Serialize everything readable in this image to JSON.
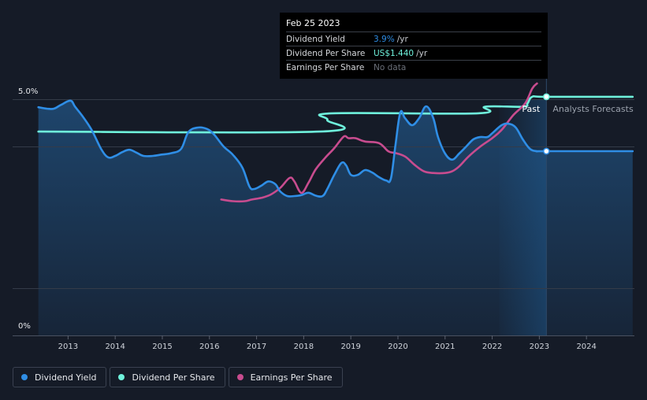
{
  "tooltip": {
    "date": "Feb 25 2023",
    "rows": [
      {
        "name": "Dividend Yield",
        "value": "3.9%",
        "unit": "/yr",
        "color": "#2f8ee6"
      },
      {
        "name": "Dividend Per Share",
        "value": "US$1.440",
        "unit": "/yr",
        "color": "#6ff2dc"
      },
      {
        "name": "Earnings Per Share",
        "value": "No data",
        "unit": "",
        "color": "#6b7079"
      }
    ]
  },
  "legend": [
    {
      "label": "Dividend Yield",
      "color": "#2f8ee6"
    },
    {
      "label": "Dividend Per Share",
      "color": "#6ff2dc"
    },
    {
      "label": "Earnings Per Share",
      "color": "#c84c8f"
    }
  ],
  "chart_data": {
    "type": "line",
    "title": "",
    "xlabel": "",
    "ylabel": "",
    "x_ticks": [
      "2013",
      "2014",
      "2015",
      "2016",
      "2017",
      "2018",
      "2019",
      "2020",
      "2021",
      "2022",
      "2023",
      "2024"
    ],
    "y_ticks": [
      "5.0%",
      "0%"
    ],
    "xlim": [
      2012.35,
      2024.98
    ],
    "ylim": [
      0,
      5.0
    ],
    "past_label": "Past",
    "forecast_label": "Analysts Forecasts",
    "forecast_start": 2023.15,
    "forecast_band_start": 2022.15,
    "series": [
      {
        "name": "Dividend Yield",
        "color": "#2f8ee6",
        "axis": "percent",
        "points": [
          [
            2012.37,
            4.83
          ],
          [
            2012.55,
            4.8
          ],
          [
            2012.7,
            4.8
          ],
          [
            2012.85,
            4.88
          ],
          [
            2013.05,
            4.97
          ],
          [
            2013.15,
            4.84
          ],
          [
            2013.3,
            4.65
          ],
          [
            2013.5,
            4.35
          ],
          [
            2013.7,
            3.95
          ],
          [
            2013.85,
            3.77
          ],
          [
            2014.0,
            3.8
          ],
          [
            2014.15,
            3.88
          ],
          [
            2014.3,
            3.93
          ],
          [
            2014.45,
            3.87
          ],
          [
            2014.6,
            3.8
          ],
          [
            2014.8,
            3.8
          ],
          [
            2015.0,
            3.83
          ],
          [
            2015.2,
            3.86
          ],
          [
            2015.4,
            3.95
          ],
          [
            2015.55,
            4.3
          ],
          [
            2015.75,
            4.4
          ],
          [
            2015.95,
            4.37
          ],
          [
            2016.1,
            4.25
          ],
          [
            2016.3,
            4.0
          ],
          [
            2016.5,
            3.82
          ],
          [
            2016.7,
            3.55
          ],
          [
            2016.85,
            3.15
          ],
          [
            2016.95,
            3.1
          ],
          [
            2017.1,
            3.17
          ],
          [
            2017.25,
            3.26
          ],
          [
            2017.4,
            3.2
          ],
          [
            2017.5,
            3.05
          ],
          [
            2017.65,
            2.95
          ],
          [
            2017.8,
            2.95
          ],
          [
            2017.95,
            2.97
          ],
          [
            2018.1,
            3.02
          ],
          [
            2018.25,
            2.96
          ],
          [
            2018.4,
            2.95
          ],
          [
            2018.5,
            3.1
          ],
          [
            2018.65,
            3.4
          ],
          [
            2018.8,
            3.65
          ],
          [
            2018.9,
            3.6
          ],
          [
            2019.0,
            3.4
          ],
          [
            2019.15,
            3.4
          ],
          [
            2019.3,
            3.5
          ],
          [
            2019.45,
            3.45
          ],
          [
            2019.6,
            3.35
          ],
          [
            2019.75,
            3.28
          ],
          [
            2019.85,
            3.32
          ],
          [
            2019.95,
            4.05
          ],
          [
            2020.05,
            4.72
          ],
          [
            2020.15,
            4.6
          ],
          [
            2020.3,
            4.45
          ],
          [
            2020.45,
            4.6
          ],
          [
            2020.6,
            4.85
          ],
          [
            2020.75,
            4.6
          ],
          [
            2020.85,
            4.2
          ],
          [
            2021.0,
            3.85
          ],
          [
            2021.15,
            3.72
          ],
          [
            2021.3,
            3.85
          ],
          [
            2021.45,
            4.0
          ],
          [
            2021.6,
            4.15
          ],
          [
            2021.75,
            4.2
          ],
          [
            2021.9,
            4.2
          ],
          [
            2022.0,
            4.28
          ],
          [
            2022.2,
            4.45
          ],
          [
            2022.35,
            4.48
          ],
          [
            2022.5,
            4.4
          ],
          [
            2022.65,
            4.15
          ],
          [
            2022.8,
            3.95
          ],
          [
            2022.95,
            3.9
          ],
          [
            2023.15,
            3.9
          ],
          [
            2024.98,
            3.9
          ]
        ]
      },
      {
        "name": "Dividend Per Share",
        "color": "#6ff2dc",
        "axis": "usd",
        "points": [
          [
            2012.37,
            1.23
          ],
          [
            2018.35,
            1.23
          ],
          [
            2018.5,
            1.3
          ],
          [
            2018.6,
            1.34
          ],
          [
            2021.7,
            1.34
          ],
          [
            2021.85,
            1.38
          ],
          [
            2022.65,
            1.38
          ],
          [
            2022.75,
            1.4
          ],
          [
            2022.85,
            1.44
          ],
          [
            2023.15,
            1.44
          ],
          [
            2024.98,
            1.44
          ]
        ]
      },
      {
        "name": "Earnings Per Share",
        "color": "#c84c8f",
        "axis": "usd",
        "points": [
          [
            2016.25,
            0.82
          ],
          [
            2016.5,
            0.81
          ],
          [
            2016.75,
            0.81
          ],
          [
            2016.9,
            0.82
          ],
          [
            2017.1,
            0.83
          ],
          [
            2017.3,
            0.85
          ],
          [
            2017.5,
            0.89
          ],
          [
            2017.7,
            0.95
          ],
          [
            2017.8,
            0.93
          ],
          [
            2017.95,
            0.86
          ],
          [
            2018.1,
            0.92
          ],
          [
            2018.25,
            1.0
          ],
          [
            2018.45,
            1.07
          ],
          [
            2018.65,
            1.13
          ],
          [
            2018.85,
            1.2
          ],
          [
            2018.95,
            1.19
          ],
          [
            2019.1,
            1.19
          ],
          [
            2019.3,
            1.17
          ],
          [
            2019.6,
            1.16
          ],
          [
            2019.8,
            1.11
          ],
          [
            2019.95,
            1.1
          ],
          [
            2020.15,
            1.08
          ],
          [
            2020.35,
            1.03
          ],
          [
            2020.55,
            0.99
          ],
          [
            2020.75,
            0.98
          ],
          [
            2021.0,
            0.98
          ],
          [
            2021.15,
            0.99
          ],
          [
            2021.3,
            1.02
          ],
          [
            2021.5,
            1.08
          ],
          [
            2021.75,
            1.14
          ],
          [
            2022.0,
            1.19
          ],
          [
            2022.2,
            1.24
          ],
          [
            2022.45,
            1.33
          ],
          [
            2022.7,
            1.4
          ],
          [
            2022.85,
            1.49
          ],
          [
            2022.95,
            1.52
          ]
        ]
      }
    ]
  }
}
